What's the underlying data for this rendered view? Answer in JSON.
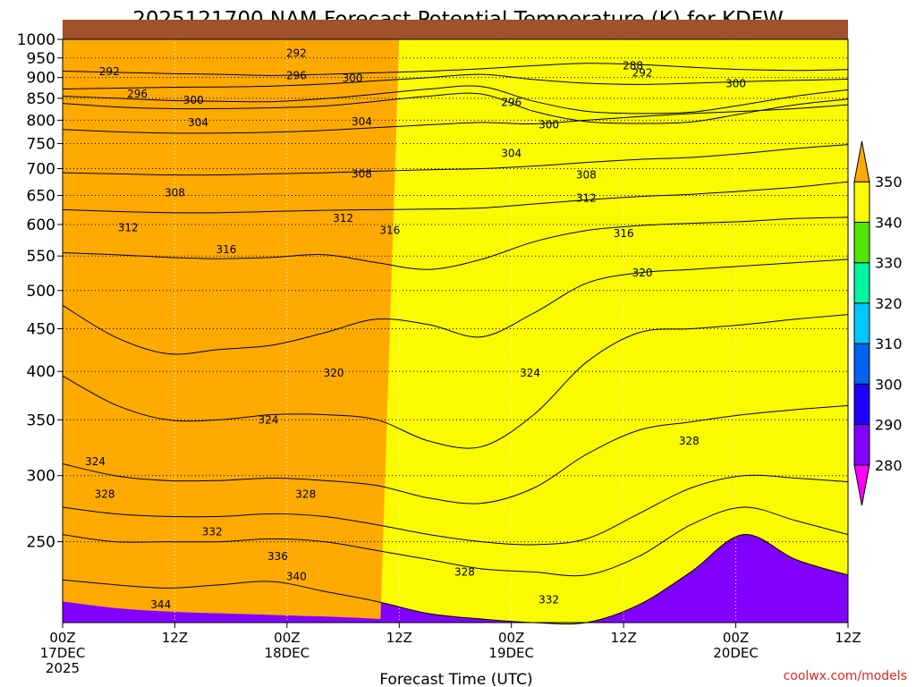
{
  "chart_data": {
    "type": "heatmap",
    "title": "2025121700 NAM Forecast Potential Temperature (K) for KDFW",
    "xlabel": "Forecast Time (UTC)",
    "ylabel": "",
    "y_scale": "log-pressure",
    "ylim": [
      1000,
      200
    ],
    "y_ticks": [
      250,
      300,
      350,
      400,
      450,
      500,
      550,
      600,
      650,
      700,
      750,
      800,
      850,
      900,
      950,
      1000
    ],
    "x_ticks": [
      {
        "hour": 0,
        "labels": [
          "00Z",
          "17DEC",
          "2025"
        ]
      },
      {
        "hour": 12,
        "labels": [
          "12Z"
        ]
      },
      {
        "hour": 24,
        "labels": [
          "00Z",
          "18DEC"
        ]
      },
      {
        "hour": 36,
        "labels": [
          "12Z"
        ]
      },
      {
        "hour": 48,
        "labels": [
          "00Z",
          "19DEC"
        ]
      },
      {
        "hour": 60,
        "labels": [
          "12Z"
        ]
      },
      {
        "hour": 72,
        "labels": [
          "00Z",
          "20DEC"
        ]
      },
      {
        "hour": 84,
        "labels": [
          "12Z"
        ]
      }
    ],
    "xlim": [
      0,
      84
    ],
    "grid": true,
    "colorbar": {
      "levels": [
        280,
        290,
        300,
        310,
        320,
        330,
        340,
        350
      ],
      "colors": [
        "#ff00ff",
        "#8200ff",
        "#1e00ff",
        "#0064f0",
        "#00c8ff",
        "#00f5a0",
        "#50e600",
        "#fafa00",
        "#ffaa00"
      ]
    },
    "series": [
      {
        "values": [
          916,
          913,
          910,
          908,
          905,
          908,
          912,
          916,
          922,
          930,
          936,
          933,
          926,
          920,
          918,
          920
        ]
      },
      {
        "values": [
          872,
          874,
          876,
          877,
          879,
          884,
          892,
          900,
          908,
          895,
          886,
          883,
          886,
          890,
          893,
          896
        ]
      },
      {
        "values": [
          855,
          850,
          845,
          843,
          842,
          849,
          860,
          872,
          878,
          843,
          820,
          815,
          818,
          835,
          855,
          870
        ]
      },
      {
        "values": [
          838,
          830,
          826,
          826,
          828,
          832,
          843,
          855,
          860,
          820,
          797,
          793,
          796,
          815,
          835,
          848
        ]
      },
      {
        "values": [
          780,
          775,
          772,
          772,
          774,
          778,
          784,
          790,
          795,
          792,
          800,
          808,
          815,
          820,
          826,
          835
        ]
      },
      {
        "values": [
          692,
          690,
          688,
          688,
          690,
          692,
          695,
          698,
          700,
          705,
          712,
          718,
          722,
          730,
          740,
          748
        ]
      },
      {
        "values": [
          625,
          622,
          620,
          620,
          622,
          624,
          625,
          626,
          628,
          635,
          642,
          648,
          652,
          658,
          665,
          675
        ]
      },
      {
        "values": [
          555,
          552,
          548,
          546,
          548,
          552,
          540,
          530,
          545,
          572,
          590,
          598,
          602,
          605,
          610,
          612
        ]
      },
      {
        "values": [
          480,
          440,
          420,
          425,
          430,
          445,
          462,
          455,
          440,
          470,
          510,
          525,
          530,
          535,
          540,
          545
        ]
      },
      {
        "values": [
          395,
          365,
          350,
          350,
          355,
          355,
          350,
          330,
          325,
          355,
          410,
          445,
          450,
          455,
          462,
          468
        ]
      },
      {
        "values": [
          310,
          300,
          296,
          296,
          298,
          296,
          292,
          282,
          278,
          290,
          318,
          340,
          348,
          355,
          360,
          364
        ]
      },
      {
        "values": [
          275,
          270,
          268,
          268,
          270,
          268,
          262,
          255,
          250,
          248,
          252,
          270,
          290,
          300,
          298,
          295
        ]
      },
      {
        "values": [
          255,
          250,
          250,
          250,
          252,
          250,
          244,
          238,
          232,
          230,
          228,
          240,
          262,
          275,
          265,
          255
        ]
      },
      {
        "values": [
          225,
          222,
          220,
          222,
          224,
          218,
          212,
          205,
          202,
          200,
          200,
          210,
          230,
          255,
          238,
          228
        ]
      }
    ],
    "levels": [
      288,
      292,
      296,
      300,
      304,
      308,
      312,
      316,
      320,
      324,
      328,
      332,
      336,
      340
    ],
    "annotations": [
      {
        "text": "344",
        "hour": 10.5,
        "p": 210
      },
      {
        "text": "340",
        "hour": 25,
        "p": 227
      },
      {
        "text": "336",
        "hour": 23,
        "p": 240
      },
      {
        "text": "332",
        "hour": 16,
        "p": 257
      },
      {
        "text": "328",
        "hour": 4.5,
        "p": 285
      },
      {
        "text": "324",
        "hour": 3.5,
        "p": 312
      },
      {
        "text": "328",
        "hour": 26,
        "p": 285
      },
      {
        "text": "324",
        "hour": 22,
        "p": 350
      },
      {
        "text": "328",
        "hour": 43,
        "p": 230
      },
      {
        "text": "332",
        "hour": 52,
        "p": 213
      },
      {
        "text": "328",
        "hour": 67,
        "p": 330
      },
      {
        "text": "320",
        "hour": 29,
        "p": 398
      },
      {
        "text": "324",
        "hour": 50,
        "p": 398
      },
      {
        "text": "316",
        "hour": 17.5,
        "p": 560
      },
      {
        "text": "320",
        "hour": 62,
        "p": 525
      },
      {
        "text": "316",
        "hour": 35,
        "p": 590
      },
      {
        "text": "316",
        "hour": 60,
        "p": 585
      },
      {
        "text": "312",
        "hour": 7,
        "p": 595
      },
      {
        "text": "312",
        "hour": 30,
        "p": 610
      },
      {
        "text": "312",
        "hour": 56,
        "p": 645
      },
      {
        "text": "308",
        "hour": 12,
        "p": 655
      },
      {
        "text": "308",
        "hour": 32,
        "p": 690
      },
      {
        "text": "308",
        "hour": 56,
        "p": 688
      },
      {
        "text": "304",
        "hour": 14.5,
        "p": 795
      },
      {
        "text": "304",
        "hour": 32,
        "p": 797
      },
      {
        "text": "304",
        "hour": 48,
        "p": 730
      },
      {
        "text": "300",
        "hour": 14,
        "p": 845
      },
      {
        "text": "300",
        "hour": 31,
        "p": 898
      },
      {
        "text": "300",
        "hour": 52,
        "p": 790
      },
      {
        "text": "300",
        "hour": 72,
        "p": 885
      },
      {
        "text": "296",
        "hour": 8,
        "p": 860
      },
      {
        "text": "296",
        "hour": 25,
        "p": 905
      },
      {
        "text": "296",
        "hour": 48,
        "p": 840
      },
      {
        "text": "292",
        "hour": 5,
        "p": 915
      },
      {
        "text": "292",
        "hour": 25,
        "p": 962
      },
      {
        "text": "292",
        "hour": 62,
        "p": 912
      },
      {
        "text": "288",
        "hour": 61,
        "p": 930
      }
    ]
  },
  "credit": "coolwx.com/models",
  "colors": {
    "ground": "#a0522d",
    "credit": "#e0281e"
  }
}
